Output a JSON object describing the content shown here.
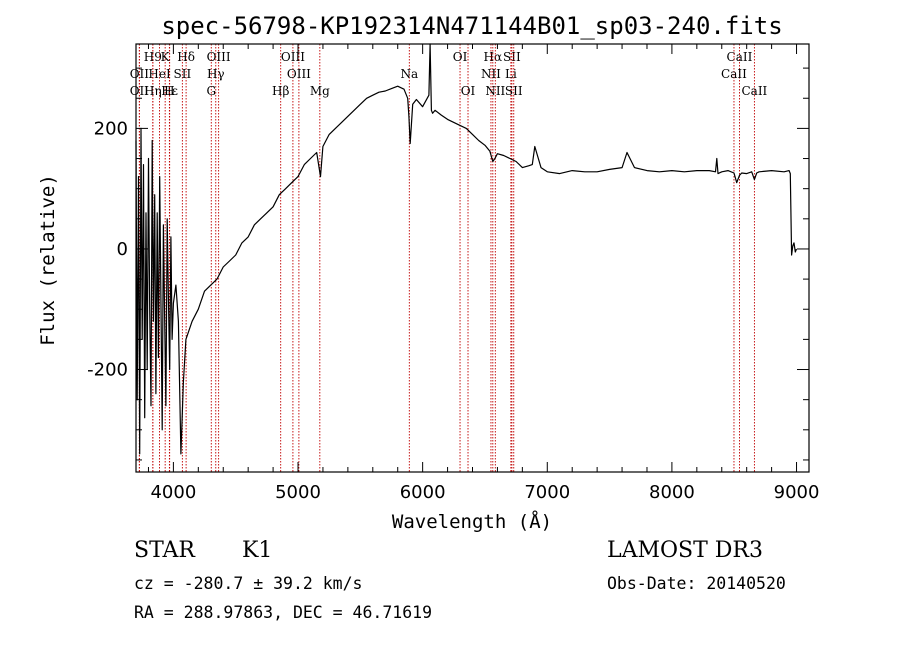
{
  "chart_data": {
    "type": "line",
    "title": "spec-56798-KP192314N471144B01_sp03-240.fits",
    "xlabel": "Wavelength (Å)",
    "ylabel": "Flux (relative)",
    "xlim": [
      3700,
      9100
    ],
    "ylim": [
      -370,
      340
    ],
    "xticks": [
      4000,
      5000,
      6000,
      7000,
      8000,
      9000
    ],
    "yticks": [
      -200,
      0,
      200
    ],
    "series": [
      {
        "name": "Flux",
        "x": [
          3700,
          3710,
          3720,
          3730,
          3740,
          3750,
          3760,
          3770,
          3780,
          3790,
          3800,
          3810,
          3820,
          3830,
          3840,
          3850,
          3860,
          3870,
          3880,
          3890,
          3900,
          3910,
          3920,
          3930,
          3940,
          3950,
          3960,
          3970,
          3980,
          3990,
          4000,
          4020,
          4040,
          4060,
          4080,
          4100,
          4150,
          4200,
          4250,
          4300,
          4350,
          4400,
          4450,
          4500,
          4550,
          4600,
          4650,
          4700,
          4750,
          4800,
          4850,
          4900,
          4950,
          5000,
          5050,
          5100,
          5150,
          5180,
          5200,
          5250,
          5300,
          5350,
          5400,
          5450,
          5500,
          5550,
          5600,
          5650,
          5700,
          5750,
          5800,
          5850,
          5880,
          5890,
          5900,
          5920,
          5950,
          6000,
          6050,
          6060,
          6070,
          6080,
          6100,
          6150,
          6200,
          6250,
          6300,
          6350,
          6400,
          6450,
          6500,
          6540,
          6563,
          6580,
          6600,
          6650,
          6700,
          6750,
          6800,
          6850,
          6880,
          6900,
          6950,
          7000,
          7100,
          7200,
          7300,
          7400,
          7500,
          7600,
          7640,
          7700,
          7800,
          7900,
          8000,
          8100,
          8200,
          8300,
          8350,
          8360,
          8370,
          8400,
          8450,
          8498,
          8520,
          8542,
          8560,
          8600,
          8640,
          8662,
          8680,
          8700,
          8800,
          8900,
          8940,
          8950,
          8960,
          8970,
          8980,
          8990,
          9000
        ],
        "values": [
          180,
          -250,
          120,
          -340,
          200,
          -150,
          140,
          -280,
          60,
          -200,
          150,
          -100,
          -260,
          180,
          -120,
          90,
          -240,
          60,
          -180,
          120,
          -80,
          -300,
          40,
          -120,
          -260,
          50,
          -80,
          -200,
          20,
          -150,
          -90,
          -60,
          -120,
          -340,
          -220,
          -150,
          -120,
          -100,
          -70,
          -60,
          -50,
          -30,
          -20,
          -10,
          10,
          20,
          40,
          50,
          60,
          70,
          90,
          100,
          110,
          120,
          140,
          150,
          160,
          120,
          170,
          190,
          200,
          210,
          220,
          230,
          240,
          250,
          255,
          260,
          262,
          266,
          270,
          265,
          250,
          220,
          175,
          240,
          248,
          236,
          255,
          340,
          230,
          225,
          230,
          222,
          215,
          210,
          205,
          200,
          190,
          180,
          172,
          162,
          145,
          150,
          158,
          155,
          150,
          145,
          135,
          138,
          140,
          170,
          135,
          128,
          125,
          130,
          128,
          128,
          132,
          135,
          160,
          135,
          130,
          128,
          130,
          128,
          130,
          130,
          128,
          150,
          125,
          128,
          130,
          126,
          110,
          122,
          126,
          125,
          128,
          115,
          126,
          128,
          130,
          128,
          130,
          125,
          -10,
          5,
          10,
          -5,
          0
        ]
      }
    ],
    "lines": [
      {
        "label": "H9",
        "wavelength": 3835,
        "row": 1
      },
      {
        "label": "K",
        "wavelength": 3934,
        "row": 1
      },
      {
        "label": "Hδ",
        "wavelength": 4102,
        "row": 1
      },
      {
        "label": "OIII",
        "wavelength": 4363,
        "row": 1
      },
      {
        "label": "OIII",
        "wavelength": 4959,
        "row": 1
      },
      {
        "label": "OI",
        "wavelength": 6300,
        "row": 1
      },
      {
        "label": "Hα",
        "wavelength": 6563,
        "row": 1
      },
      {
        "label": "SII",
        "wavelength": 6716,
        "row": 1
      },
      {
        "label": "CaII",
        "wavelength": 8542,
        "row": 1
      },
      {
        "label": "OII",
        "wavelength": 3727,
        "row": 2
      },
      {
        "label": "HeI",
        "wavelength": 3889,
        "row": 2
      },
      {
        "label": "SII",
        "wavelength": 4072,
        "row": 2
      },
      {
        "label": "Hγ",
        "wavelength": 4340,
        "row": 2
      },
      {
        "label": "OIII",
        "wavelength": 5007,
        "row": 2
      },
      {
        "label": "Na",
        "wavelength": 5893,
        "row": 2
      },
      {
        "label": "NII",
        "wavelength": 6548,
        "row": 2
      },
      {
        "label": "Li",
        "wavelength": 6708,
        "row": 2
      },
      {
        "label": "CaII",
        "wavelength": 8498,
        "row": 2
      },
      {
        "label": "OII",
        "wavelength": 3727,
        "row": 3
      },
      {
        "label": "Hε",
        "wavelength": 3970,
        "row": 3
      },
      {
        "label": "Hη",
        "wavelength": 3835,
        "row": 3
      },
      {
        "label": "H",
        "wavelength": 3968,
        "row": 3
      },
      {
        "label": "G",
        "wavelength": 4304,
        "row": 3
      },
      {
        "label": "Hβ",
        "wavelength": 4861,
        "row": 3
      },
      {
        "label": "Mg",
        "wavelength": 5175,
        "row": 3
      },
      {
        "label": "OI",
        "wavelength": 6364,
        "row": 3
      },
      {
        "label": "NII",
        "wavelength": 6583,
        "row": 3
      },
      {
        "label": "SII",
        "wavelength": 6731,
        "row": 3
      },
      {
        "label": "CaII",
        "wavelength": 8662,
        "row": 3
      }
    ],
    "line_color": "#c00000",
    "series_color": "#000000"
  },
  "info": {
    "class": "STAR",
    "subclass": "K1",
    "survey": "LAMOST DR3",
    "redshift": "cz = -280.7 ± 39.2 km/s",
    "obs_date": "Obs-Date: 20140520",
    "coords": "RA = 288.97863, DEC =  46.71619"
  }
}
